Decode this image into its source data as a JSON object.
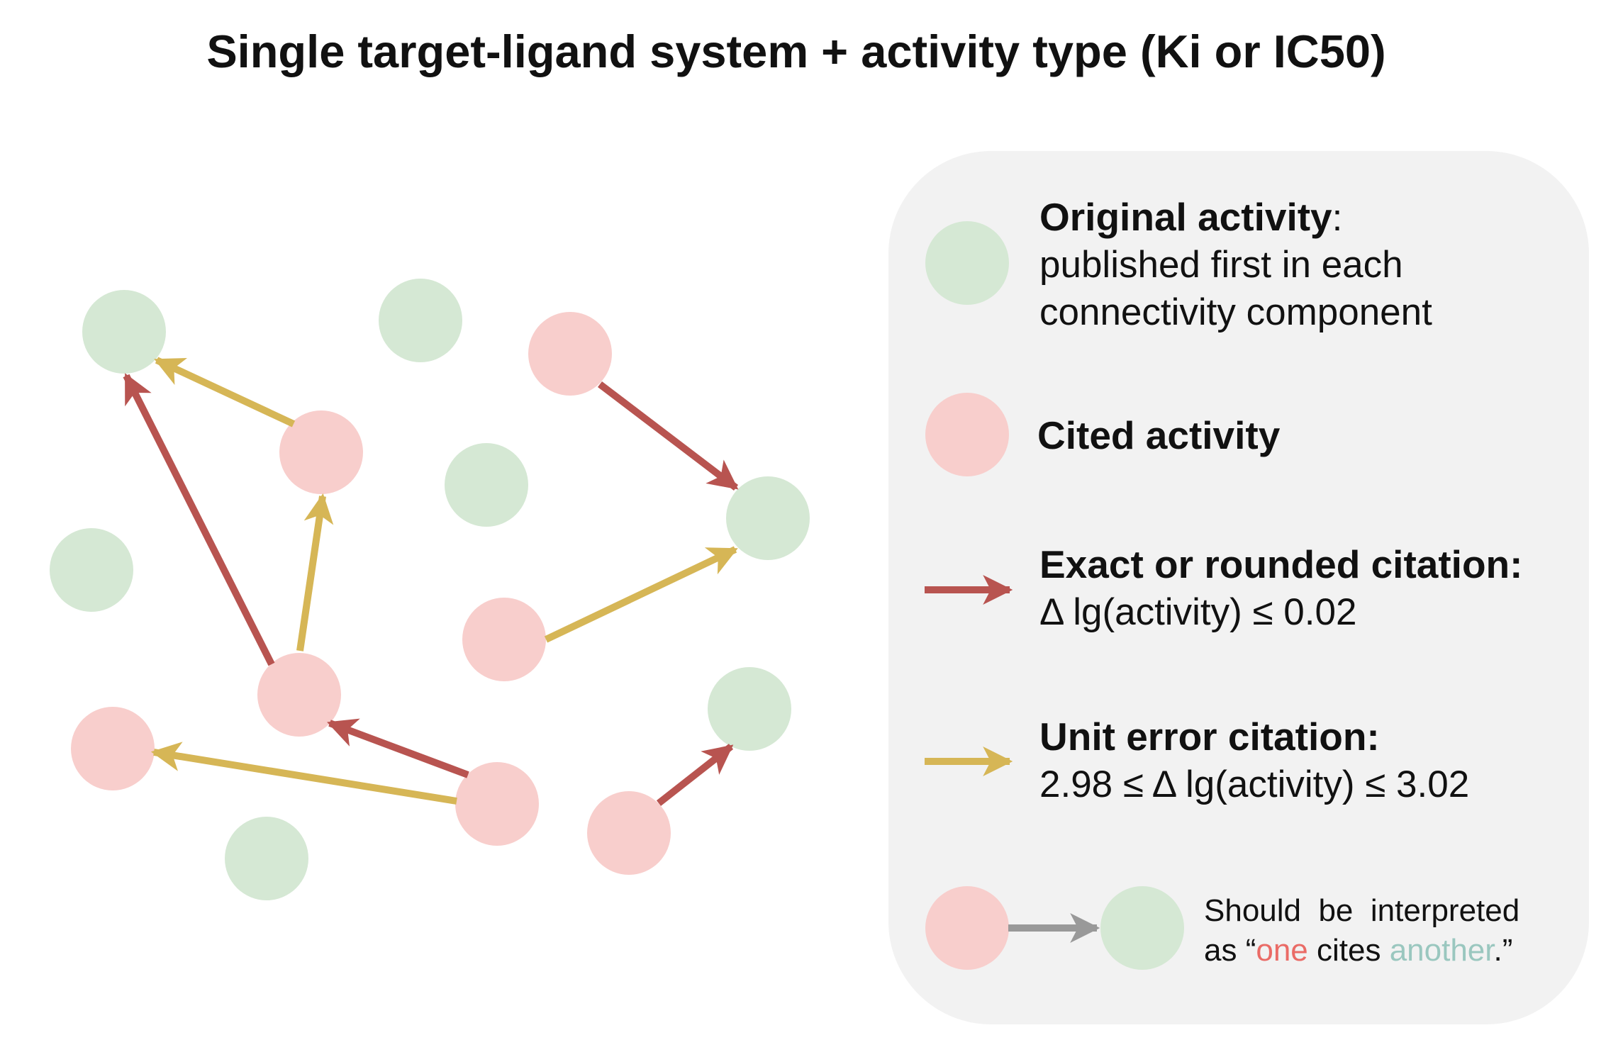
{
  "title": "Single target-ligand system + activity type (Ki or IC50)",
  "colors": {
    "original": "#d5e8d4",
    "cited": "#f8cecc",
    "exact_arrow": "#b85450",
    "unit_arrow": "#d6b656",
    "example_arrow": "#999999",
    "panel": "#f2f2f2",
    "highlight_one": "#ea6b66",
    "highlight_another": "#9ac7bf"
  },
  "legend": {
    "original": {
      "label": "Original activity",
      "suffix": ":",
      "line2": "published first in each",
      "line3": "connectivity component"
    },
    "cited": {
      "label": "Cited activity"
    },
    "exact": {
      "label": "Exact or rounded citation:",
      "desc": "Δ lg(activity) ≤ 0.02"
    },
    "unit": {
      "label": "Unit error citation:",
      "desc": "2.98 ≤ Δ lg(activity) ≤ 3.02"
    },
    "example": {
      "line1": "Should  be  interpreted",
      "line2_prefix": "as “",
      "one": "one",
      "mid": " cites ",
      "another": "another",
      "end": ".”"
    }
  }
}
